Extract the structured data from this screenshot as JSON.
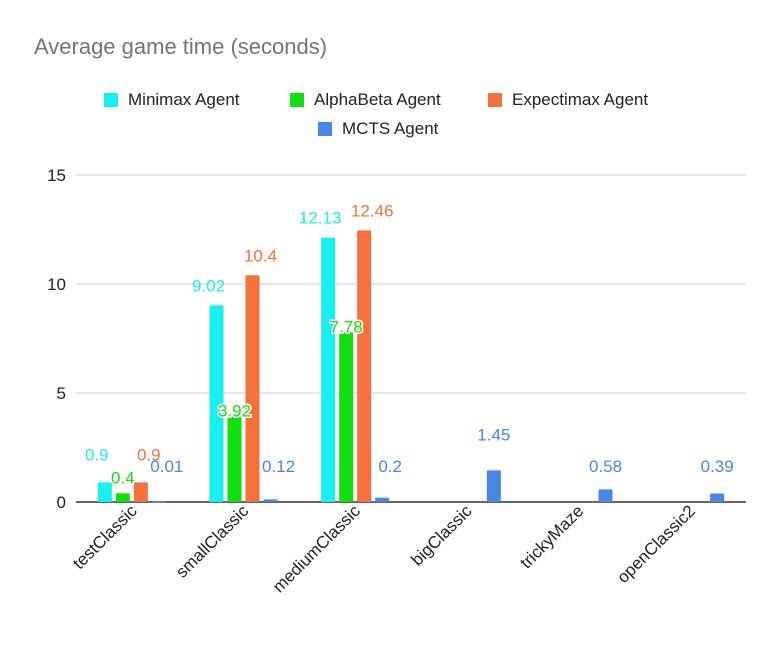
{
  "chart_data": {
    "type": "bar",
    "title": "Average game time (seconds)",
    "xlabel": "",
    "ylabel": "",
    "ylim": [
      0,
      15
    ],
    "yticks": [
      0,
      5,
      10,
      15
    ],
    "grid": true,
    "legend_position": "top",
    "categories": [
      "testClassic",
      "smallClassic",
      "mediumClassic",
      "bigClassic",
      "trickyMaze",
      "openClassic2"
    ],
    "series": [
      {
        "name": "Minimax Agent",
        "color": "#18f0f0",
        "values": [
          0.9,
          9.02,
          12.13,
          null,
          null,
          null
        ]
      },
      {
        "name": "AlphaBeta Agent",
        "color": "#10e010",
        "values": [
          0.4,
          3.92,
          7.78,
          null,
          null,
          null
        ]
      },
      {
        "name": "Expectimax Agent",
        "color": "#f5703a",
        "values": [
          0.9,
          10.4,
          12.46,
          null,
          null,
          null
        ]
      },
      {
        "name": "MCTS Agent",
        "color": "#4a86e8",
        "values": [
          0.01,
          0.12,
          0.2,
          1.45,
          0.58,
          0.39
        ]
      }
    ]
  }
}
